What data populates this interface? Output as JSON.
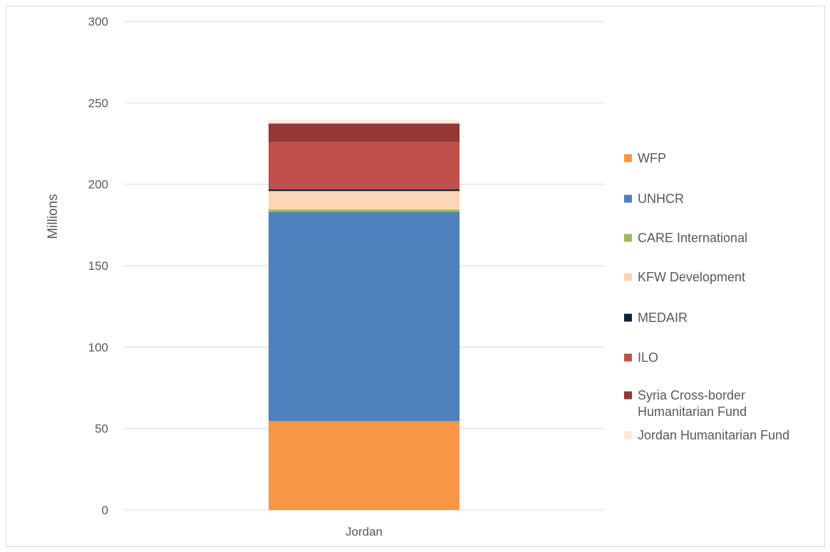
{
  "chart_data": {
    "type": "bar",
    "stacked": true,
    "categories": [
      "Jordan"
    ],
    "ylabel": "Millions",
    "xlabel": "",
    "ylim": [
      0,
      300
    ],
    "yticks": [
      0,
      50,
      100,
      150,
      200,
      250,
      300
    ],
    "grid": true,
    "legend_position": "right",
    "series": [
      {
        "name": "WFP",
        "values": [
          54.5
        ],
        "color": "#F79646"
      },
      {
        "name": "UNHCR",
        "values": [
          128.5
        ],
        "color": "#4F81BD"
      },
      {
        "name": "CARE International",
        "values": [
          1.5
        ],
        "color": "#9BBB59"
      },
      {
        "name": "KFW Development",
        "values": [
          11.3
        ],
        "color": "#FCD5B5"
      },
      {
        "name": "MEDAIR",
        "values": [
          1.0
        ],
        "color": "#0F243E"
      },
      {
        "name": "ILO",
        "values": [
          29.0
        ],
        "color": "#C0504D"
      },
      {
        "name": "Syria Cross-border Humanitarian Fund",
        "values": [
          11.5
        ],
        "color": "#953735"
      },
      {
        "name": "Jordan Humanitarian Fund",
        "values": [
          2.2
        ],
        "color": "#FDE9D9"
      }
    ]
  }
}
